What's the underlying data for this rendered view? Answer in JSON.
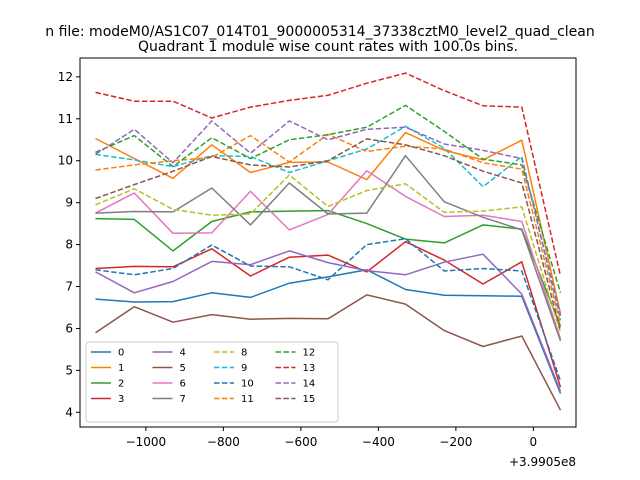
{
  "figure": {
    "suptitle": "n file: modeM0/AS1C07_014T01_9000005314_37338cztM0_level2_quad_clean",
    "title": "Quadrant 1 module wise count rates with 100.0s bins.",
    "x_offset_label": "+3.9905e8"
  },
  "chart_data": {
    "type": "line",
    "title": "Quadrant 1 module wise count rates with 100.0s bins.",
    "xlabel": "",
    "ylabel": "",
    "x_offset": 399050000,
    "xlim": [
      -1170,
      110
    ],
    "ylim": [
      3.65,
      12.45
    ],
    "x_ticks": [
      -1000,
      -800,
      -600,
      -400,
      -200,
      0
    ],
    "x_tick_labels": [
      "−1000",
      "−800",
      "−600",
      "−400",
      "−200",
      "0"
    ],
    "y_ticks": [
      4,
      5,
      6,
      7,
      8,
      9,
      10,
      11,
      12
    ],
    "y_tick_labels": [
      "4",
      "5",
      "6",
      "7",
      "8",
      "9",
      "10",
      "11",
      "12"
    ],
    "grid": false,
    "legend": {
      "placement": "lower-left",
      "columns": 4
    },
    "x": [
      -1130,
      -1030,
      -930,
      -830,
      -730,
      -630,
      -530,
      -430,
      -330,
      -230,
      -130,
      -30,
      70
    ],
    "series": [
      {
        "name": "0",
        "color": "#1f77b4",
        "dash": "solid",
        "values": [
          6.7,
          6.63,
          6.64,
          6.85,
          6.74,
          7.08,
          7.23,
          7.4,
          6.93,
          6.79,
          6.78,
          6.77,
          4.45
        ]
      },
      {
        "name": "1",
        "color": "#ff7f0e",
        "dash": "solid",
        "values": [
          10.53,
          10.05,
          9.58,
          10.38,
          9.72,
          9.96,
          9.97,
          9.55,
          10.67,
          10.25,
          10.02,
          10.49,
          6.35
        ]
      },
      {
        "name": "2",
        "color": "#2ca02c",
        "dash": "solid",
        "values": [
          8.62,
          8.6,
          7.85,
          8.55,
          8.78,
          8.8,
          8.81,
          8.5,
          8.13,
          8.04,
          8.47,
          8.37,
          6.05
        ]
      },
      {
        "name": "3",
        "color": "#d62728",
        "dash": "solid",
        "values": [
          7.43,
          7.48,
          7.47,
          7.9,
          7.25,
          7.7,
          7.75,
          7.35,
          8.07,
          7.63,
          7.06,
          7.59,
          4.6
        ]
      },
      {
        "name": "4",
        "color": "#9467bd",
        "dash": "solid",
        "values": [
          7.35,
          6.85,
          7.12,
          7.6,
          7.52,
          7.85,
          7.57,
          7.38,
          7.28,
          7.58,
          7.77,
          6.82,
          4.5
        ]
      },
      {
        "name": "5",
        "color": "#8c564b",
        "dash": "solid",
        "values": [
          5.9,
          6.52,
          6.15,
          6.33,
          6.22,
          6.24,
          6.23,
          6.8,
          6.58,
          5.95,
          5.57,
          5.82,
          4.05
        ]
      },
      {
        "name": "6",
        "color": "#e377c2",
        "dash": "solid",
        "values": [
          8.75,
          9.23,
          8.27,
          8.28,
          9.27,
          8.35,
          8.72,
          9.76,
          9.15,
          8.67,
          8.7,
          8.55,
          5.75
        ]
      },
      {
        "name": "7",
        "color": "#7f7f7f",
        "dash": "solid",
        "values": [
          8.75,
          8.79,
          8.78,
          9.35,
          8.47,
          9.47,
          8.73,
          8.75,
          10.12,
          9.02,
          8.65,
          8.35,
          5.7
        ]
      },
      {
        "name": "8",
        "color": "#bcbd22",
        "dash": "dashed",
        "values": [
          8.95,
          9.33,
          8.84,
          8.7,
          8.73,
          9.66,
          8.91,
          9.29,
          9.45,
          8.77,
          8.8,
          8.9,
          5.9
        ]
      },
      {
        "name": "9",
        "color": "#17becf",
        "dash": "dashed",
        "values": [
          10.15,
          10.02,
          9.86,
          10.12,
          10.1,
          9.72,
          10.0,
          10.28,
          10.82,
          10.3,
          9.38,
          10.1,
          6.2
        ]
      },
      {
        "name": "10",
        "color": "#1f77b4",
        "dash": "dashed",
        "values": [
          7.4,
          7.28,
          7.43,
          7.99,
          7.49,
          7.47,
          7.16,
          8.0,
          8.14,
          7.37,
          7.43,
          7.37,
          4.75
        ]
      },
      {
        "name": "11",
        "color": "#ff7f0e",
        "dash": "dashed",
        "values": [
          9.78,
          9.9,
          10.0,
          10.08,
          10.6,
          9.97,
          10.63,
          10.22,
          10.35,
          10.28,
          9.95,
          9.8,
          6.1
        ]
      },
      {
        "name": "12",
        "color": "#2ca02c",
        "dash": "dashed",
        "values": [
          10.2,
          10.6,
          9.86,
          10.55,
          10.05,
          10.5,
          10.62,
          10.8,
          11.32,
          10.7,
          10.04,
          9.9,
          6.85
        ]
      },
      {
        "name": "13",
        "color": "#d62728",
        "dash": "dashed",
        "values": [
          11.63,
          11.42,
          11.42,
          11.02,
          11.28,
          11.44,
          11.56,
          11.85,
          12.09,
          11.67,
          11.31,
          11.28,
          7.25
        ]
      },
      {
        "name": "14",
        "color": "#9467bd",
        "dash": "dashed",
        "values": [
          10.15,
          10.75,
          9.95,
          10.95,
          10.18,
          10.95,
          10.5,
          10.75,
          10.8,
          10.4,
          10.25,
          10.05,
          6.3
        ]
      },
      {
        "name": "15",
        "color": "#8c564b",
        "dash": "dashed",
        "values": [
          9.1,
          9.43,
          9.75,
          10.1,
          9.9,
          9.85,
          10.0,
          10.52,
          10.38,
          10.12,
          9.75,
          9.47,
          5.95
        ]
      }
    ]
  }
}
